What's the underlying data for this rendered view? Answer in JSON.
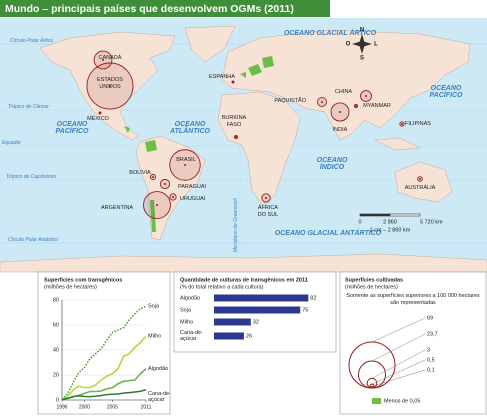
{
  "title": "Mundo – principais países que desenvolvem OGMs (2011)",
  "map": {
    "labels": [
      {
        "text": [
          "Círculo Polar Ártico"
        ]
      },
      {
        "text": [
          "OCEANO GLACIAL ÁRTICO"
        ]
      },
      {
        "text": [
          "CANADÁ"
        ],
        "value": 10.4
      },
      {
        "text": [
          "ESTADOS",
          "UNIDOS"
        ],
        "value": 69
      },
      {
        "text": [
          "MÉXICO"
        ],
        "value": 0.1
      },
      {
        "text": [
          "ESPANHA"
        ],
        "value": 0.1
      },
      {
        "text": [
          "PAQUISTÃO"
        ],
        "value": 2.6
      },
      {
        "text": [
          "CHINA"
        ],
        "value": 3.9
      },
      {
        "text": [
          "MYANMAR"
        ],
        "value": 0.3
      },
      {
        "text": [
          "ÍNDIA"
        ],
        "value": 10.6
      },
      {
        "text": [
          "FILIPINAS"
        ],
        "value": 0.6
      },
      {
        "text": [
          "OCEANO",
          "PACÍFICO"
        ]
      },
      {
        "text": [
          "OCEANO",
          "ATLÂNTICO"
        ]
      },
      {
        "text": [
          "OCEANO",
          "PACÍFICO"
        ]
      },
      {
        "text": [
          "Trópico de Câncer"
        ]
      },
      {
        "text": [
          "Equador"
        ]
      },
      {
        "text": [
          "Trópico de Capricórnio"
        ]
      },
      {
        "text": [
          "BURKINA",
          "FASO"
        ],
        "value": 0.3
      },
      {
        "text": [
          "BRASIL"
        ],
        "value": 30.3
      },
      {
        "text": [
          "BOLÍVIA"
        ],
        "value": 0.9
      },
      {
        "text": [
          "PARAGUAI"
        ],
        "value": 2.8
      },
      {
        "text": [
          "URUGUAI"
        ],
        "value": 1.3
      },
      {
        "text": [
          "ARGENTINA"
        ],
        "value": 23.7
      },
      {
        "text": [
          "OCEANO",
          "ÍNDICO"
        ]
      },
      {
        "text": [
          "AUSTRÁLIA"
        ],
        "value": 0.7
      },
      {
        "text": [
          "ÁFRICA",
          "DO SUL"
        ],
        "value": 2.3
      },
      {
        "text": [
          "Meridiano de Greenwich"
        ]
      },
      {
        "text": [
          "Círculo Polar Antártico"
        ]
      },
      {
        "text": [
          "OCEANO GLACIAL ANTÁRTICO"
        ]
      }
    ],
    "circle_color": "#9b1c1c",
    "compass": [
      "N",
      "S",
      "L",
      "O"
    ],
    "scale": {
      "ticks": [
        "0",
        "2 860",
        "5 720 km"
      ],
      "note": "1 cm – 2 860 km"
    }
  },
  "chart_data": [
    {
      "type": "line",
      "title": "Superfícies com transgênicos",
      "subtitle": "(milhões de hectares)",
      "x": [
        1996,
        1997,
        1998,
        1999,
        2000,
        2001,
        2002,
        2003,
        2004,
        2005,
        2006,
        2007,
        2008,
        2009,
        2010,
        2011
      ],
      "xlim": [
        1996,
        2011
      ],
      "xticks": [
        1996,
        2000,
        2005,
        2011
      ],
      "ylim": [
        0,
        80
      ],
      "yticks": [
        0,
        20,
        40,
        60,
        80
      ],
      "series": [
        {
          "name": "Soja",
          "color": "#4c9f2f",
          "dash": "dotted",
          "values": [
            0.5,
            5,
            14,
            22,
            26,
            33,
            37,
            41,
            48,
            54,
            56,
            58,
            64,
            69,
            73,
            75
          ]
        },
        {
          "name": "Milho",
          "color": "#b8d63a",
          "values": [
            0.3,
            3,
            8,
            11,
            10,
            10,
            12,
            16,
            19,
            21,
            25,
            35,
            37,
            42,
            46,
            51
          ]
        },
        {
          "name": "Algodão",
          "color": "#6db443",
          "values": [
            0.8,
            1.4,
            2.5,
            3.7,
            5.3,
            6.8,
            6.8,
            7.2,
            9,
            9.8,
            13,
            15,
            15.5,
            16,
            21,
            25
          ]
        },
        {
          "name": "Cana-de-açúcar",
          "color": "#2f7a34",
          "values": [
            0.1,
            1.3,
            2.8,
            3.4,
            2.8,
            2.7,
            3,
            3.6,
            4.3,
            4.6,
            4.8,
            5.5,
            5.9,
            6.4,
            7,
            8.2
          ]
        }
      ]
    },
    {
      "type": "bar",
      "title": "Quantidade de culturas de transgênicos em 2011",
      "subtitle": "(% do total relativo a cada cultura)",
      "categories": [
        "Algodão",
        "Soja",
        "Milho",
        "Cana-de-açúcar"
      ],
      "values": [
        82,
        75,
        32,
        26
      ],
      "color": "#2b3990"
    }
  ],
  "legend": {
    "title": "Superfícies cultivadas",
    "subtitle": "(milhões de hectares)",
    "note": "Somente as superfícies superiores a 100 000 hectares são representadas",
    "sizes": [
      {
        "value": 69,
        "label": "69"
      },
      {
        "value": 23.7,
        "label": "23,7"
      },
      {
        "value": 3,
        "label": "3"
      },
      {
        "value": 0.5,
        "label": "0,5"
      },
      {
        "value": 0.1,
        "label": "0,1"
      }
    ],
    "green_label": "Menos de 0,05",
    "green_color": "#6cbf45"
  }
}
